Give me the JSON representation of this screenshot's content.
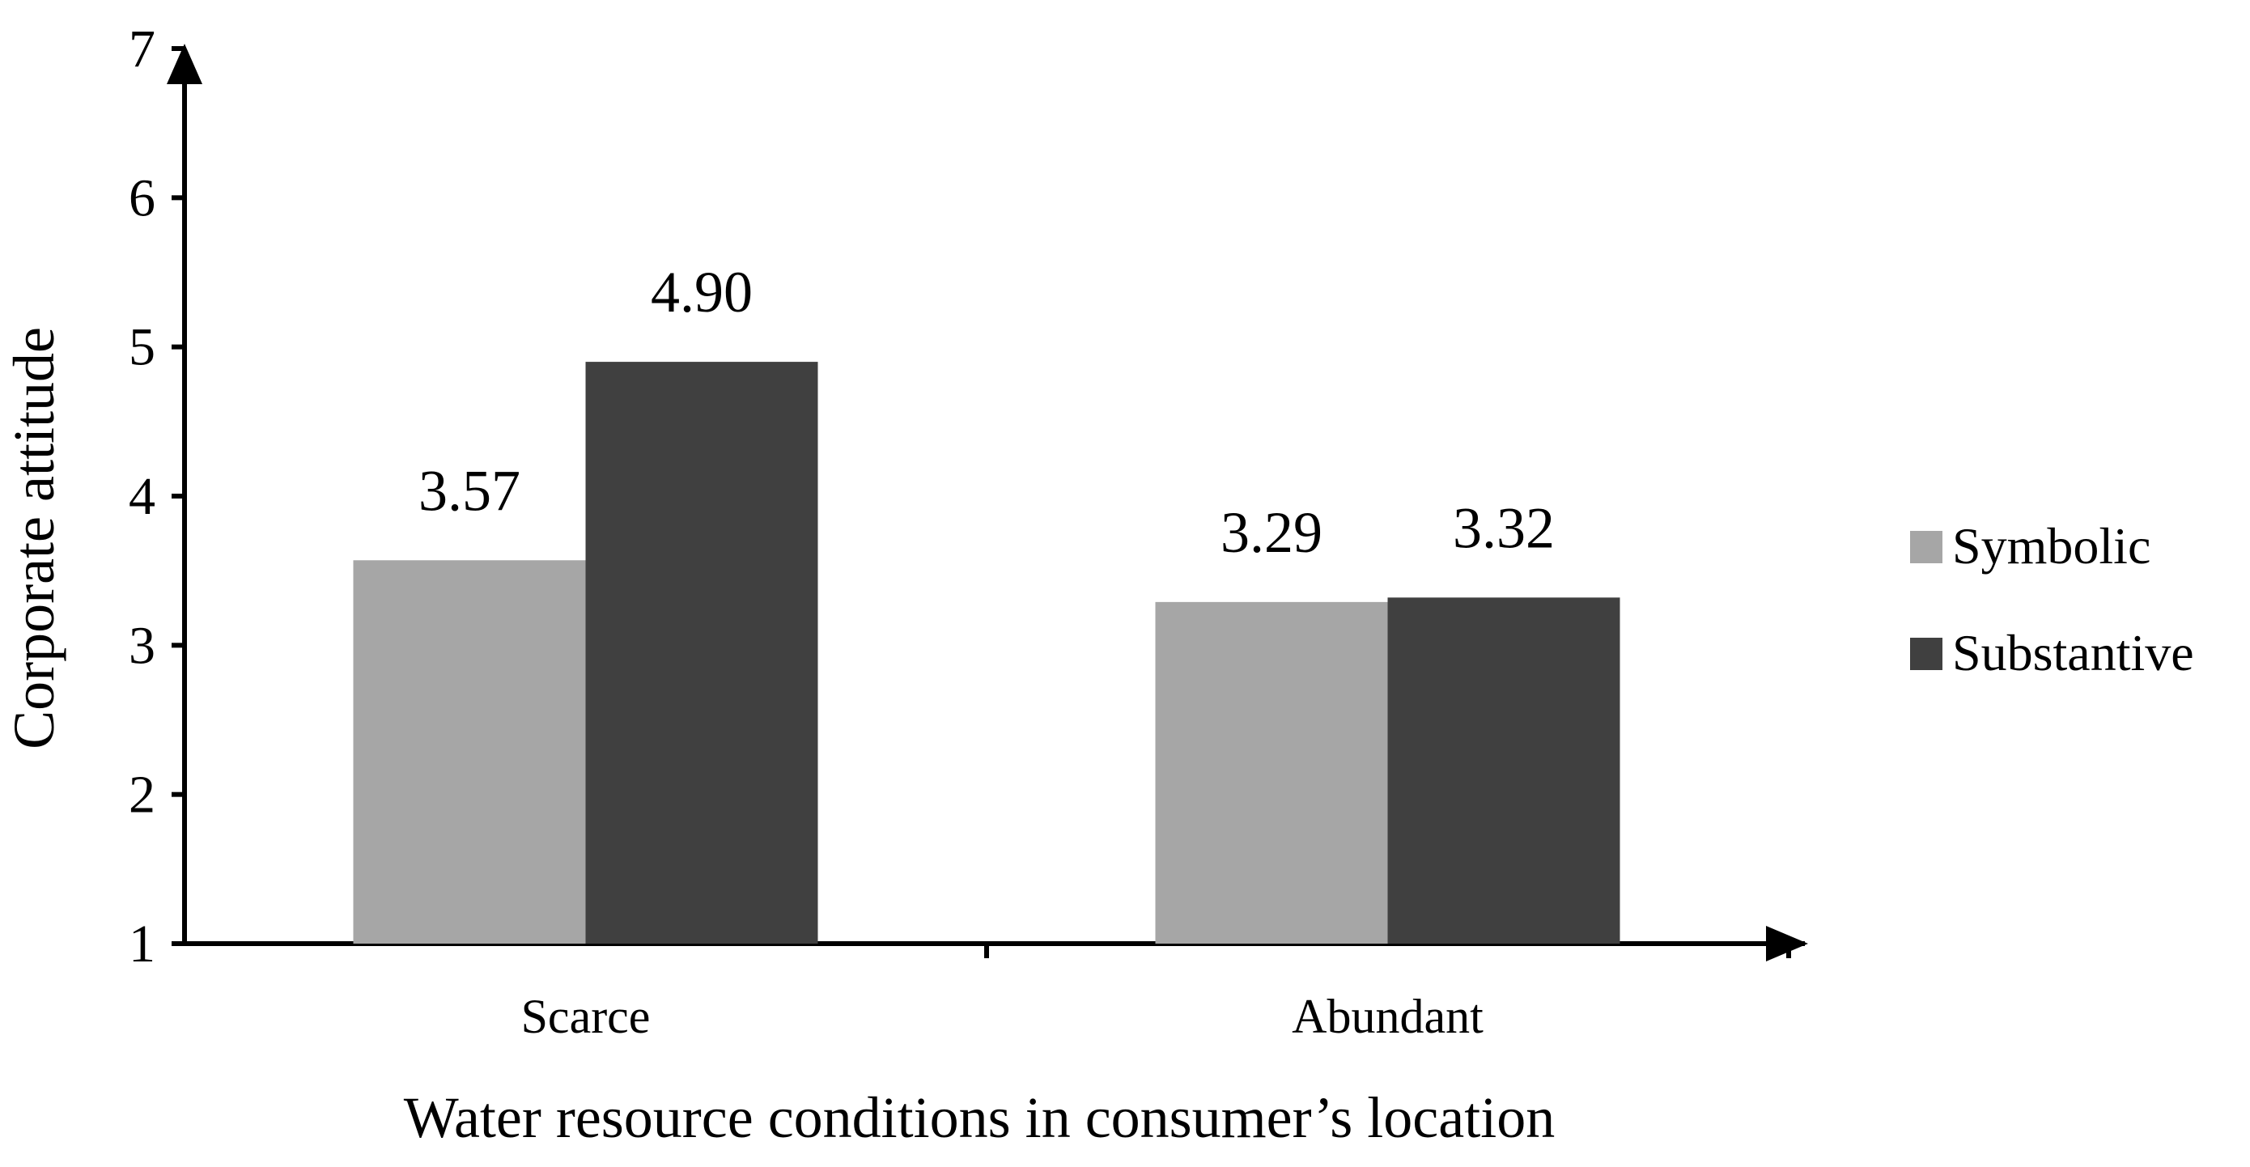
{
  "chart_data": {
    "type": "bar",
    "title": "",
    "xlabel": "Water resource conditions in consumer’s location",
    "ylabel": "Corporate attitude",
    "categories": [
      "Scarce",
      "Abundant"
    ],
    "series": [
      {
        "name": "Symbolic",
        "values": [
          3.57,
          3.29
        ],
        "color": "#a6a6a6"
      },
      {
        "name": "Substantive",
        "values": [
          4.9,
          3.32
        ],
        "color": "#404040"
      }
    ],
    "value_labels": [
      [
        "3.57",
        "3.29"
      ],
      [
        "4.90",
        "3.32"
      ]
    ],
    "ylim": [
      1,
      7
    ],
    "yticks": [
      "1",
      "2",
      "3",
      "4",
      "5",
      "6",
      "7"
    ],
    "grid": false,
    "legend_position": "right",
    "axis_color": "#000000"
  }
}
